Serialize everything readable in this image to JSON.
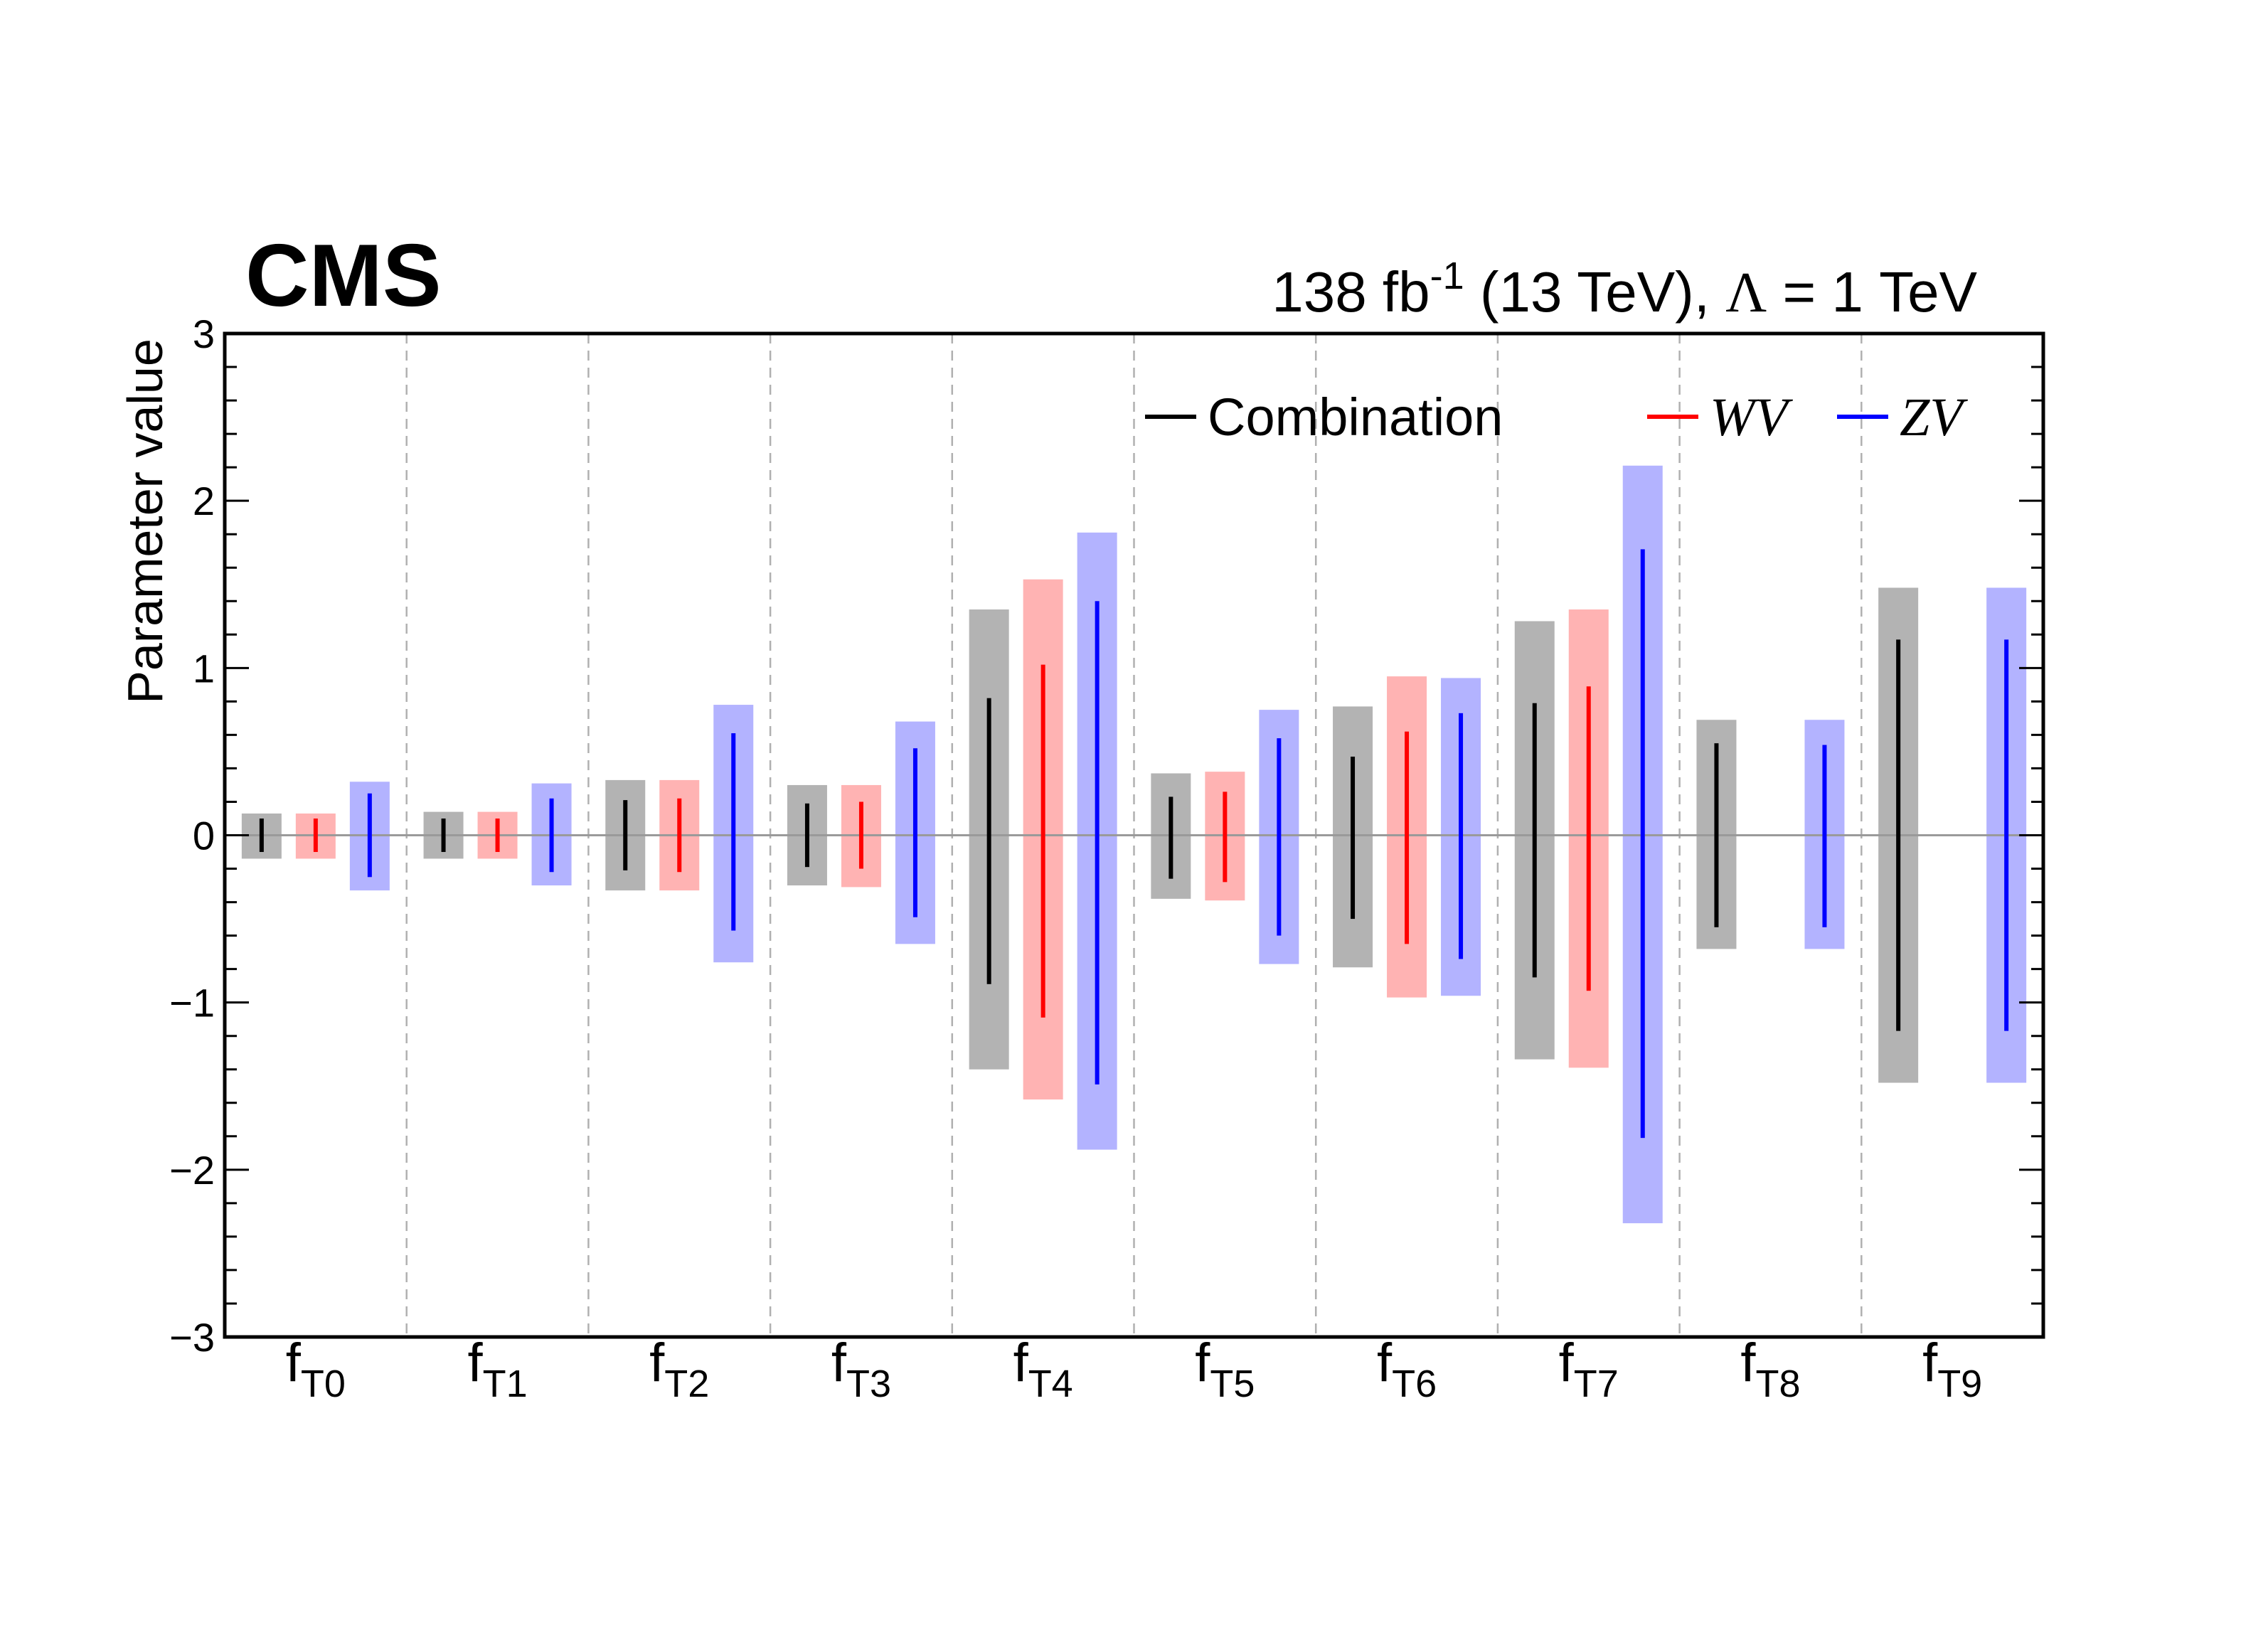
{
  "header": {
    "experiment": "CMS",
    "lumi_value": "138 fb",
    "lumi_exponent": "-1",
    "lumi_suffix": " (13 TeV), ",
    "lambda_symbol": "Λ",
    "lambda_value": " = 1 TeV"
  },
  "chart_data": {
    "type": "error-bar",
    "ylabel": "Parameter value",
    "ylim": [
      -3,
      3
    ],
    "yticks": [
      "−3",
      "−2",
      "−1",
      "0",
      "1",
      "2",
      "3"
    ],
    "ytick_values": [
      -3,
      -2,
      -1,
      0,
      1,
      2,
      3
    ],
    "grid": "dashed vertical separators between parameters; horizontal line at 0",
    "legend_position": "top-right",
    "categories": [
      {
        "base": "f",
        "sub": "T0"
      },
      {
        "base": "f",
        "sub": "T1"
      },
      {
        "base": "f",
        "sub": "T2"
      },
      {
        "base": "f",
        "sub": "T3"
      },
      {
        "base": "f",
        "sub": "T4"
      },
      {
        "base": "f",
        "sub": "T5"
      },
      {
        "base": "f",
        "sub": "T6"
      },
      {
        "base": "f",
        "sub": "T7"
      },
      {
        "base": "f",
        "sub": "T8"
      },
      {
        "base": "f",
        "sub": "T9"
      }
    ],
    "series": [
      {
        "name": "Combination",
        "italic": false,
        "line_color": "#000000",
        "band_color": "#b3b3b3",
        "interval_68": [
          [
            -0.1,
            0.1
          ],
          [
            -0.1,
            0.1
          ],
          [
            -0.21,
            0.21
          ],
          [
            -0.19,
            0.19
          ],
          [
            -0.89,
            0.82
          ],
          [
            -0.26,
            0.23
          ],
          [
            -0.5,
            0.47
          ],
          [
            -0.85,
            0.79
          ],
          [
            -0.55,
            0.55
          ],
          [
            -1.17,
            1.17
          ]
        ],
        "interval_95": [
          [
            -0.14,
            0.13
          ],
          [
            -0.14,
            0.14
          ],
          [
            -0.33,
            0.33
          ],
          [
            -0.3,
            0.3
          ],
          [
            -1.4,
            1.35
          ],
          [
            -0.38,
            0.37
          ],
          [
            -0.79,
            0.77
          ],
          [
            -1.34,
            1.28
          ],
          [
            -0.68,
            0.69
          ],
          [
            -1.48,
            1.48
          ]
        ]
      },
      {
        "name": "WV",
        "italic": true,
        "line_color": "#ff0000",
        "band_color": "#ffb3b3",
        "interval_68": [
          [
            -0.1,
            0.1
          ],
          [
            -0.1,
            0.1
          ],
          [
            -0.22,
            0.22
          ],
          [
            -0.2,
            0.2
          ],
          [
            -1.09,
            1.02
          ],
          [
            -0.28,
            0.26
          ],
          [
            -0.65,
            0.62
          ],
          [
            -0.93,
            0.89
          ],
          null,
          null
        ],
        "interval_95": [
          [
            -0.14,
            0.13
          ],
          [
            -0.14,
            0.14
          ],
          [
            -0.33,
            0.33
          ],
          [
            -0.31,
            0.3
          ],
          [
            -1.58,
            1.53
          ],
          [
            -0.39,
            0.38
          ],
          [
            -0.97,
            0.95
          ],
          [
            -1.39,
            1.35
          ],
          null,
          null
        ]
      },
      {
        "name": "ZV",
        "italic": true,
        "line_color": "#0000ff",
        "band_color": "#b3b3ff",
        "interval_68": [
          [
            -0.25,
            0.25
          ],
          [
            -0.22,
            0.22
          ],
          [
            -0.57,
            0.61
          ],
          [
            -0.49,
            0.52
          ],
          [
            -1.49,
            1.4
          ],
          [
            -0.6,
            0.58
          ],
          [
            -0.74,
            0.73
          ],
          [
            -1.81,
            1.71
          ],
          [
            -0.55,
            0.54
          ],
          [
            -1.17,
            1.17
          ]
        ],
        "interval_95": [
          [
            -0.33,
            0.32
          ],
          [
            -0.3,
            0.31
          ],
          [
            -0.76,
            0.78
          ],
          [
            -0.65,
            0.68
          ],
          [
            -1.88,
            1.81
          ],
          [
            -0.77,
            0.75
          ],
          [
            -0.96,
            0.94
          ],
          [
            -2.32,
            2.21
          ],
          [
            -0.68,
            0.69
          ],
          [
            -1.48,
            1.48
          ]
        ]
      }
    ]
  }
}
